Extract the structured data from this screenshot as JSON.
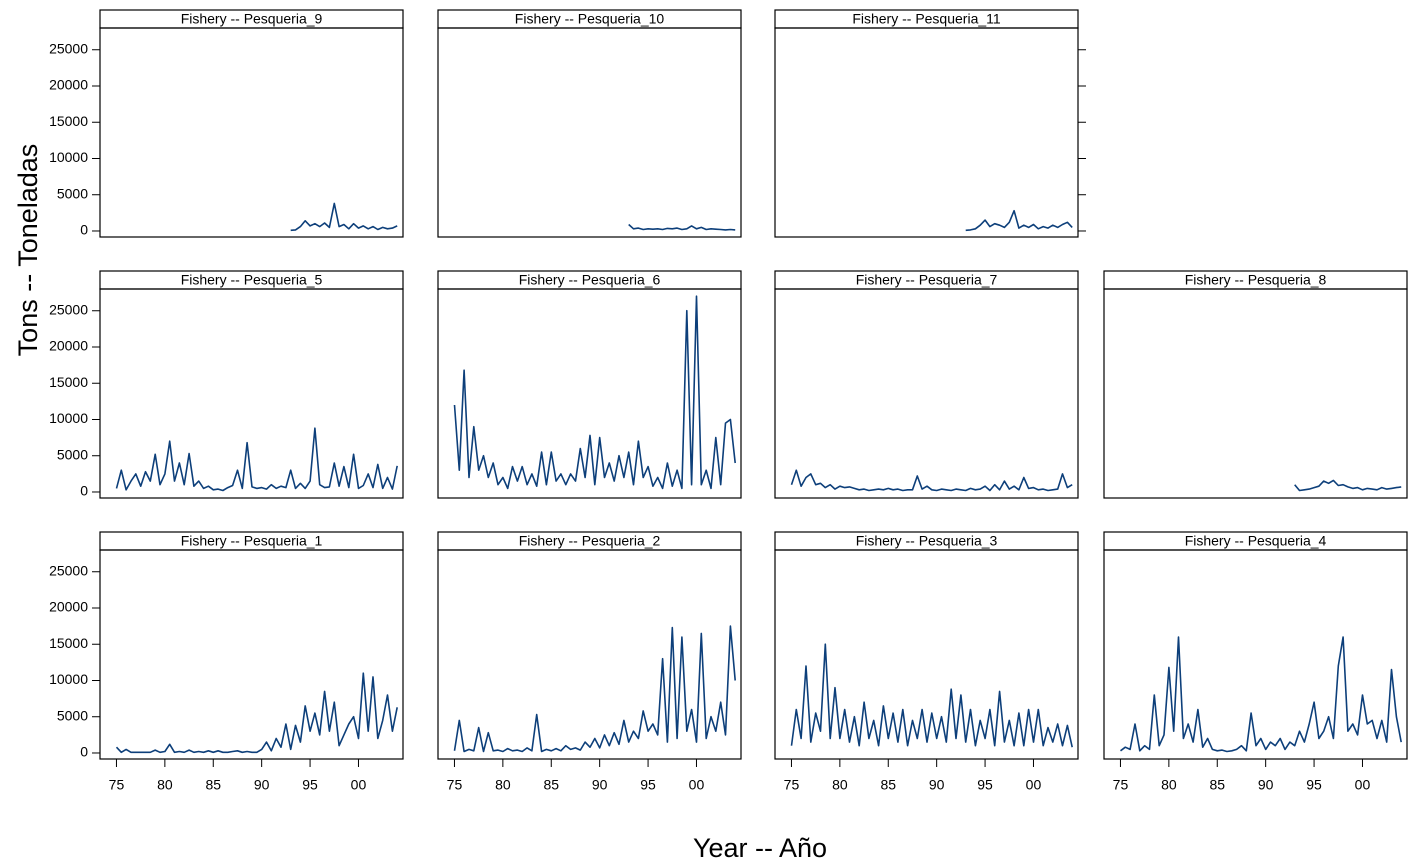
{
  "chart_data": {
    "type": "line",
    "xlabel": "Year -- Año",
    "ylabel": "Tons -- Toneladas",
    "color": "#0d3f7a",
    "xlim": [
      1973.3,
      2004.6
    ],
    "ylim": [
      -830,
      28000
    ],
    "xticks": [
      {
        "value": 1975,
        "label": "75"
      },
      {
        "value": 1980,
        "label": "80"
      },
      {
        "value": 1985,
        "label": "85"
      },
      {
        "value": 1990,
        "label": "90"
      },
      {
        "value": 1995,
        "label": "95"
      },
      {
        "value": 2000,
        "label": "00"
      }
    ],
    "yticks": [
      0,
      5000,
      10000,
      15000,
      20000,
      25000
    ],
    "x": [
      1975,
      1975.5,
      1976,
      1976.5,
      1977,
      1977.5,
      1978,
      1978.5,
      1979,
      1979.5,
      1980,
      1980.5,
      1981,
      1981.5,
      1982,
      1982.5,
      1983,
      1983.5,
      1984,
      1984.5,
      1985,
      1985.5,
      1986,
      1986.5,
      1987,
      1987.5,
      1988,
      1988.5,
      1989,
      1989.5,
      1990,
      1990.5,
      1991,
      1991.5,
      1992,
      1992.5,
      1993,
      1993.5,
      1994,
      1994.5,
      1995,
      1995.5,
      1996,
      1996.5,
      1997,
      1997.5,
      1998,
      1998.5,
      1999,
      1999.5,
      2000,
      2000.5,
      2001,
      2001.5,
      2002,
      2002.5,
      2003,
      2003.5,
      2004
    ],
    "panels": [
      {
        "title": "Fishery -- Pesqueria_9",
        "values": [
          null,
          null,
          null,
          null,
          null,
          null,
          null,
          null,
          null,
          null,
          null,
          null,
          null,
          null,
          null,
          null,
          null,
          null,
          null,
          null,
          null,
          null,
          null,
          null,
          null,
          null,
          null,
          null,
          null,
          null,
          null,
          null,
          null,
          null,
          null,
          null,
          100,
          150,
          600,
          1400,
          700,
          1000,
          600,
          1100,
          500,
          3800,
          600,
          900,
          300,
          1000,
          400,
          700,
          300,
          600,
          200,
          500,
          300,
          400,
          700
        ]
      },
      {
        "title": "Fishery -- Pesqueria_10",
        "values": [
          null,
          null,
          null,
          null,
          null,
          null,
          null,
          null,
          null,
          null,
          null,
          null,
          null,
          null,
          null,
          null,
          null,
          null,
          null,
          null,
          null,
          null,
          null,
          null,
          null,
          null,
          null,
          null,
          null,
          null,
          null,
          null,
          null,
          null,
          null,
          null,
          900,
          300,
          400,
          200,
          300,
          250,
          300,
          200,
          350,
          300,
          400,
          200,
          300,
          700,
          300,
          500,
          200,
          300,
          250,
          200,
          150,
          200,
          150
        ]
      },
      {
        "title": "Fishery -- Pesqueria_11",
        "values": [
          null,
          null,
          null,
          null,
          null,
          null,
          null,
          null,
          null,
          null,
          null,
          null,
          null,
          null,
          null,
          null,
          null,
          null,
          null,
          null,
          null,
          null,
          null,
          null,
          null,
          null,
          null,
          null,
          null,
          null,
          null,
          null,
          null,
          null,
          null,
          null,
          100,
          150,
          300,
          800,
          1500,
          600,
          1000,
          800,
          500,
          1200,
          2800,
          400,
          800,
          500,
          900,
          300,
          600,
          400,
          800,
          500,
          900,
          1200,
          500
        ]
      },
      {
        "title": "Fishery -- Pesqueria_5",
        "values": [
          500,
          3000,
          300,
          1500,
          2500,
          800,
          2800,
          1500,
          5200,
          1000,
          2500,
          7000,
          1500,
          4000,
          1000,
          5300,
          800,
          1500,
          500,
          800,
          300,
          400,
          200,
          600,
          900,
          3000,
          500,
          6800,
          700,
          500,
          600,
          400,
          1000,
          500,
          800,
          600,
          3000,
          500,
          1200,
          500,
          1500,
          8800,
          1000,
          600,
          700,
          4000,
          800,
          3500,
          600,
          5200,
          500,
          900,
          2500,
          600,
          3800,
          500,
          2000,
          400,
          3600
        ]
      },
      {
        "title": "Fishery -- Pesqueria_6",
        "values": [
          12000,
          3000,
          16800,
          2000,
          9000,
          3000,
          5000,
          2000,
          4000,
          1000,
          2000,
          500,
          3500,
          1500,
          3500,
          1000,
          2500,
          800,
          5500,
          1000,
          5500,
          1500,
          2500,
          1000,
          2500,
          1500,
          6000,
          2000,
          7800,
          1000,
          7500,
          2000,
          4000,
          1500,
          5000,
          2000,
          5500,
          1000,
          7000,
          2000,
          3500,
          800,
          2000,
          500,
          4000,
          800,
          3000,
          500,
          25000,
          1000,
          27000,
          1000,
          3000,
          500,
          7500,
          1000,
          9500,
          10000,
          4000
        ]
      },
      {
        "title": "Fishery -- Pesqueria_7",
        "values": [
          1000,
          3000,
          800,
          2000,
          2500,
          1000,
          1200,
          600,
          1000,
          400,
          800,
          600,
          700,
          500,
          300,
          400,
          200,
          300,
          400,
          300,
          500,
          300,
          400,
          200,
          300,
          300,
          2200,
          400,
          800,
          300,
          200,
          400,
          300,
          200,
          400,
          300,
          200,
          500,
          300,
          400,
          800,
          200,
          1000,
          300,
          1500,
          400,
          800,
          300,
          2000,
          500,
          600,
          300,
          400,
          200,
          300,
          400,
          2500,
          600,
          1000
        ]
      },
      {
        "title": "Fishery -- Pesqueria_8",
        "values": [
          null,
          null,
          null,
          null,
          null,
          null,
          null,
          null,
          null,
          null,
          null,
          null,
          null,
          null,
          null,
          null,
          null,
          null,
          null,
          null,
          null,
          null,
          null,
          null,
          null,
          null,
          null,
          null,
          null,
          null,
          null,
          null,
          null,
          null,
          null,
          null,
          1000,
          200,
          300,
          400,
          600,
          800,
          1500,
          1200,
          1600,
          900,
          1000,
          700,
          500,
          600,
          300,
          500,
          400,
          300,
          600,
          400,
          500,
          600,
          700
        ]
      },
      {
        "title": "Fishery -- Pesqueria_1",
        "values": [
          800,
          100,
          500,
          100,
          100,
          100,
          100,
          100,
          400,
          100,
          200,
          1200,
          100,
          200,
          100,
          400,
          100,
          200,
          100,
          300,
          100,
          300,
          100,
          100,
          200,
          300,
          100,
          200,
          100,
          100,
          500,
          1500,
          300,
          2000,
          800,
          4000,
          500,
          3800,
          1500,
          6500,
          3000,
          5500,
          2500,
          8500,
          3000,
          7000,
          1000,
          2500,
          4000,
          5000,
          2000,
          11000,
          3000,
          10500,
          2000,
          4500,
          8000,
          3000,
          6300
        ]
      },
      {
        "title": "Fishery -- Pesqueria_2",
        "values": [
          300,
          4500,
          200,
          500,
          300,
          3500,
          200,
          2800,
          300,
          400,
          200,
          600,
          300,
          400,
          200,
          700,
          300,
          5300,
          200,
          500,
          300,
          600,
          300,
          1000,
          500,
          700,
          400,
          1500,
          800,
          2000,
          700,
          2500,
          1000,
          2800,
          1200,
          4500,
          1500,
          3000,
          2000,
          5800,
          3000,
          4000,
          2500,
          13000,
          1500,
          17300,
          2000,
          16000,
          3000,
          6000,
          1500,
          16500,
          2000,
          5000,
          3000,
          7000,
          2500,
          17500,
          10000
        ]
      },
      {
        "title": "Fishery -- Pesqueria_3",
        "values": [
          1000,
          6000,
          2000,
          12000,
          1500,
          5500,
          3000,
          15000,
          2000,
          9000,
          2000,
          6000,
          1500,
          5000,
          1000,
          7000,
          2000,
          4500,
          1000,
          6500,
          2000,
          5500,
          1500,
          6000,
          1000,
          4500,
          2000,
          6000,
          1500,
          5500,
          2000,
          5000,
          1500,
          8800,
          2000,
          8000,
          1500,
          6000,
          1000,
          4500,
          2000,
          6000,
          1000,
          8500,
          1500,
          4500,
          1000,
          5500,
          1000,
          6000,
          1500,
          6000,
          1000,
          3500,
          1500,
          4000,
          1000,
          3800,
          800
        ]
      },
      {
        "title": "Fishery -- Pesqueria_4",
        "values": [
          300,
          800,
          500,
          4000,
          300,
          1000,
          500,
          8000,
          1000,
          2500,
          11800,
          3000,
          16000,
          2000,
          4000,
          1500,
          6000,
          800,
          2000,
          500,
          300,
          400,
          200,
          300,
          500,
          1000,
          300,
          5500,
          1000,
          2000,
          500,
          1500,
          1000,
          2000,
          500,
          1500,
          1000,
          3000,
          1500,
          4000,
          7000,
          2000,
          3000,
          5000,
          2000,
          12000,
          16000,
          3000,
          4000,
          2500,
          8000,
          4000,
          4500,
          2000,
          4500,
          1500,
          11500,
          5000,
          1500
        ]
      }
    ]
  }
}
